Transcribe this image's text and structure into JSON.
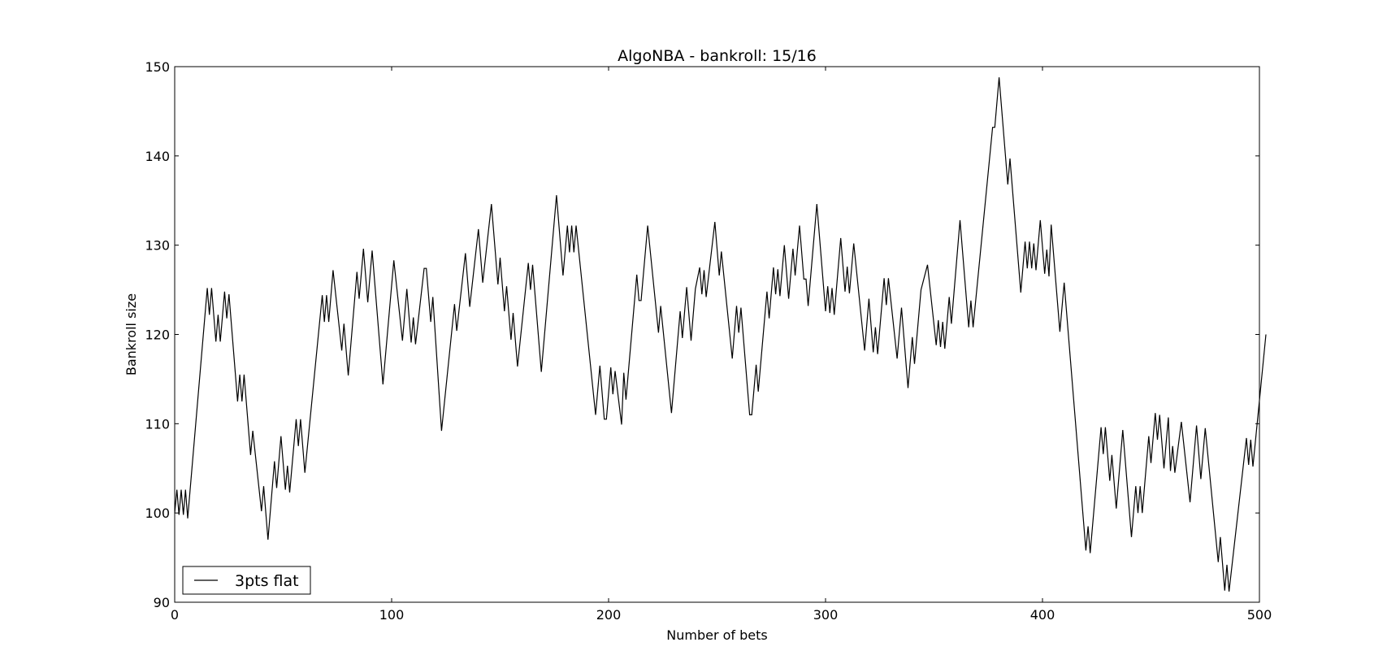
{
  "chart_data": {
    "type": "line",
    "title": "AlgoNBA - bankroll: 15/16",
    "xlabel": "Number of bets",
    "ylabel": "Bankroll size",
    "xlim": [
      0,
      500
    ],
    "ylim": [
      90,
      150
    ],
    "xticks": [
      0,
      100,
      200,
      300,
      400,
      500
    ],
    "yticks": [
      90,
      100,
      110,
      120,
      130,
      140,
      150
    ],
    "grid": false,
    "legend_position": "lower-left",
    "series": [
      {
        "name": "3pts flat",
        "color": "#000000",
        "points": [
          [
            0,
            100
          ],
          [
            1,
            102.6
          ],
          [
            2,
            99.8
          ],
          [
            3,
            102.6
          ],
          [
            4,
            99.8
          ],
          [
            5,
            102.6
          ],
          [
            6,
            99.4
          ],
          [
            15,
            125.2
          ],
          [
            16,
            122.2
          ],
          [
            17,
            125.2
          ],
          [
            19,
            119.2
          ],
          [
            20,
            122.2
          ],
          [
            21,
            119.2
          ],
          [
            23,
            124.8
          ],
          [
            24,
            121.8
          ],
          [
            25,
            124.5
          ],
          [
            29,
            112.5
          ],
          [
            30,
            115.5
          ],
          [
            31,
            112.5
          ],
          [
            32,
            115.5
          ],
          [
            35,
            106.5
          ],
          [
            36,
            109.2
          ],
          [
            40,
            100.2
          ],
          [
            41,
            103.0
          ],
          [
            43,
            97.0
          ],
          [
            46,
            105.8
          ],
          [
            47,
            102.8
          ],
          [
            49,
            108.6
          ],
          [
            51,
            102.6
          ],
          [
            52,
            105.3
          ],
          [
            53,
            102.3
          ],
          [
            56,
            110.5
          ],
          [
            57,
            107.5
          ],
          [
            58,
            110.5
          ],
          [
            60,
            104.5
          ],
          [
            68,
            124.4
          ],
          [
            69,
            121.4
          ],
          [
            70,
            124.4
          ],
          [
            71,
            121.4
          ],
          [
            73,
            127.2
          ],
          [
            77,
            118.2
          ],
          [
            78,
            121.2
          ],
          [
            80,
            115.4
          ],
          [
            84,
            127.0
          ],
          [
            85,
            124.0
          ],
          [
            87,
            129.6
          ],
          [
            89,
            123.6
          ],
          [
            91,
            129.4
          ],
          [
            96,
            114.4
          ],
          [
            101,
            128.3
          ],
          [
            105,
            119.3
          ],
          [
            107,
            125.1
          ],
          [
            109,
            119.1
          ],
          [
            110,
            121.9
          ],
          [
            111,
            118.9
          ],
          [
            115,
            127.4
          ],
          [
            116,
            127.4
          ],
          [
            118,
            121.4
          ],
          [
            119,
            124.2
          ],
          [
            123,
            109.2
          ],
          [
            129,
            123.4
          ],
          [
            130,
            120.4
          ],
          [
            134,
            129.1
          ],
          [
            136,
            123.1
          ],
          [
            140,
            131.8
          ],
          [
            142,
            125.8
          ],
          [
            146,
            134.6
          ],
          [
            149,
            125.6
          ],
          [
            150,
            128.6
          ],
          [
            152,
            122.6
          ],
          [
            153,
            125.4
          ],
          [
            155,
            119.4
          ],
          [
            156,
            122.4
          ],
          [
            158,
            116.4
          ],
          [
            163,
            128.0
          ],
          [
            164,
            125.0
          ],
          [
            165,
            127.8
          ],
          [
            169,
            115.8
          ],
          [
            176,
            135.6
          ],
          [
            179,
            126.6
          ],
          [
            181,
            132.2
          ],
          [
            182,
            129.2
          ],
          [
            183,
            132.2
          ],
          [
            184,
            129.2
          ],
          [
            185,
            132.2
          ],
          [
            194,
            111.0
          ],
          [
            196,
            116.5
          ],
          [
            198,
            110.5
          ],
          [
            199,
            110.5
          ],
          [
            201,
            116.3
          ],
          [
            202,
            113.3
          ],
          [
            203,
            115.9
          ],
          [
            206,
            109.9
          ],
          [
            207,
            115.7
          ],
          [
            208,
            112.7
          ],
          [
            213,
            126.7
          ],
          [
            214,
            123.8
          ],
          [
            215,
            123.8
          ],
          [
            218,
            132.2
          ],
          [
            223,
            120.2
          ],
          [
            224,
            123.2
          ],
          [
            229,
            111.2
          ],
          [
            233,
            122.6
          ],
          [
            234,
            119.6
          ],
          [
            236,
            125.3
          ],
          [
            238,
            119.3
          ],
          [
            240,
            125.1
          ],
          [
            242,
            127.5
          ],
          [
            243,
            124.5
          ],
          [
            244,
            127.2
          ],
          [
            245,
            124.2
          ],
          [
            249,
            132.6
          ],
          [
            251,
            126.6
          ],
          [
            252,
            129.3
          ],
          [
            257,
            117.3
          ],
          [
            259,
            123.2
          ],
          [
            260,
            120.2
          ],
          [
            261,
            123.0
          ],
          [
            265,
            111.0
          ],
          [
            266,
            111.0
          ],
          [
            268,
            116.6
          ],
          [
            269,
            113.6
          ],
          [
            273,
            124.8
          ],
          [
            274,
            121.8
          ],
          [
            276,
            127.5
          ],
          [
            277,
            124.5
          ],
          [
            278,
            127.3
          ],
          [
            279,
            124.3
          ],
          [
            281,
            130.0
          ],
          [
            283,
            124.0
          ],
          [
            285,
            129.6
          ],
          [
            286,
            126.6
          ],
          [
            288,
            132.2
          ],
          [
            290,
            126.2
          ],
          [
            291,
            126.2
          ],
          [
            292,
            123.2
          ],
          [
            296,
            134.6
          ],
          [
            300,
            122.6
          ],
          [
            301,
            125.4
          ],
          [
            302,
            122.4
          ],
          [
            303,
            125.2
          ],
          [
            304,
            122.2
          ],
          [
            307,
            130.8
          ],
          [
            309,
            124.8
          ],
          [
            310,
            127.6
          ],
          [
            311,
            124.6
          ],
          [
            313,
            130.2
          ],
          [
            318,
            118.2
          ],
          [
            320,
            124.0
          ],
          [
            322,
            118.0
          ],
          [
            323,
            120.8
          ],
          [
            324,
            117.8
          ],
          [
            327,
            126.3
          ],
          [
            328,
            123.3
          ],
          [
            329,
            126.3
          ],
          [
            333,
            117.3
          ],
          [
            335,
            123.0
          ],
          [
            338,
            114.0
          ],
          [
            340,
            119.7
          ],
          [
            341,
            116.7
          ],
          [
            344,
            125.0
          ],
          [
            347,
            127.8
          ],
          [
            351,
            118.8
          ],
          [
            352,
            121.6
          ],
          [
            353,
            118.6
          ],
          [
            354,
            121.4
          ],
          [
            355,
            118.4
          ],
          [
            357,
            124.2
          ],
          [
            358,
            121.2
          ],
          [
            362,
            132.8
          ],
          [
            366,
            120.8
          ],
          [
            367,
            123.8
          ],
          [
            368,
            120.8
          ],
          [
            377,
            143.2
          ],
          [
            378,
            143.2
          ],
          [
            380,
            148.8
          ],
          [
            384,
            136.8
          ],
          [
            385,
            139.7
          ],
          [
            390,
            124.7
          ],
          [
            392,
            130.4
          ],
          [
            393,
            127.4
          ],
          [
            394,
            130.4
          ],
          [
            395,
            127.4
          ],
          [
            396,
            130.2
          ],
          [
            397,
            127.2
          ],
          [
            399,
            132.8
          ],
          [
            401,
            126.8
          ],
          [
            402,
            129.5
          ],
          [
            403,
            126.5
          ],
          [
            404,
            132.3
          ],
          [
            408,
            120.3
          ],
          [
            410,
            125.8
          ],
          [
            420,
            95.8
          ],
          [
            421,
            98.5
          ],
          [
            422,
            95.5
          ],
          [
            427,
            109.6
          ],
          [
            428,
            106.6
          ],
          [
            429,
            109.6
          ],
          [
            431,
            103.6
          ],
          [
            432,
            106.5
          ],
          [
            434,
            100.5
          ],
          [
            437,
            109.3
          ],
          [
            441,
            97.3
          ],
          [
            443,
            103.0
          ],
          [
            444,
            100.0
          ],
          [
            445,
            103.0
          ],
          [
            446,
            100.0
          ],
          [
            449,
            108.6
          ],
          [
            450,
            105.6
          ],
          [
            452,
            111.2
          ],
          [
            453,
            108.2
          ],
          [
            454,
            111.0
          ],
          [
            456,
            105.0
          ],
          [
            458,
            110.7
          ],
          [
            459,
            104.7
          ],
          [
            460,
            107.5
          ],
          [
            461,
            104.5
          ],
          [
            464,
            110.2
          ],
          [
            468,
            101.2
          ],
          [
            471,
            109.8
          ],
          [
            473,
            103.8
          ],
          [
            475,
            109.5
          ],
          [
            481,
            94.5
          ],
          [
            482,
            97.3
          ],
          [
            484,
            91.3
          ],
          [
            485,
            94.2
          ],
          [
            486,
            91.2
          ],
          [
            494,
            108.4
          ],
          [
            495,
            105.4
          ],
          [
            496,
            108.2
          ],
          [
            497,
            105.2
          ],
          [
            503,
            120.0
          ]
        ]
      }
    ]
  }
}
